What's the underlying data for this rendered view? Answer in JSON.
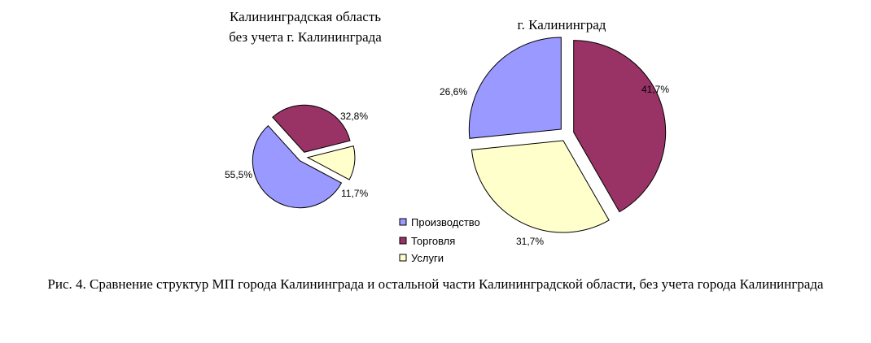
{
  "chart_data": [
    {
      "type": "pie",
      "title": "Калининградская область без учета г. Калининграда",
      "title_lines": [
        "Калининградская область",
        "без учета г. Калининграда"
      ],
      "categories": [
        "Производство",
        "Торговля",
        "Услуги"
      ],
      "values": [
        55.5,
        32.8,
        11.7
      ],
      "labels": [
        "55,5%",
        "32,8%",
        "11,7%"
      ],
      "colors": [
        "#9999ff",
        "#993366",
        "#ffffcc"
      ],
      "exploded": true
    },
    {
      "type": "pie",
      "title": "г. Калининград",
      "title_lines": [
        "г. Калининград"
      ],
      "categories": [
        "Производство",
        "Торговля",
        "Услуги"
      ],
      "values": [
        26.6,
        41.7,
        31.7
      ],
      "labels": [
        "26,6%",
        "41,7%",
        "31,7%"
      ],
      "colors": [
        "#9999ff",
        "#993366",
        "#ffffcc"
      ],
      "exploded": true
    }
  ],
  "legend": {
    "placement": "bottom-center",
    "items": [
      {
        "label": "Производство",
        "color": "#9999ff"
      },
      {
        "label": "Торговля",
        "color": "#993366"
      },
      {
        "label": "Услуги",
        "color": "#ffffcc"
      }
    ]
  },
  "caption": "Рис. 4. Сравнение структур МП города Калининграда и остальной части Калининградской области, без учета города Калининграда"
}
